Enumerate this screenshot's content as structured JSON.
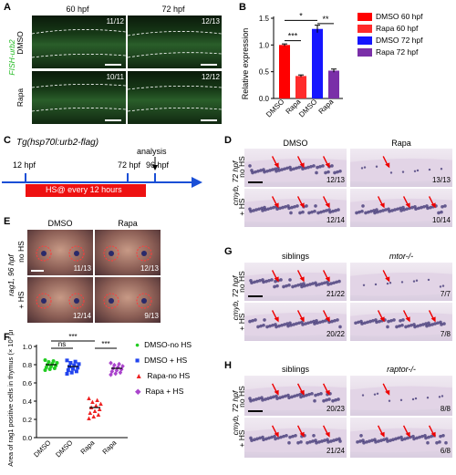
{
  "panelA": {
    "letter": "A",
    "col_headers": [
      "60 hpf",
      "72 hpf"
    ],
    "row_labels": [
      "DMSO",
      "Rapa"
    ],
    "y_title": "FISH-urb2",
    "counts": [
      "11/12",
      "12/13",
      "10/11",
      "12/12"
    ]
  },
  "panelB": {
    "letter": "B",
    "ylabel": "Relative expression",
    "legend": [
      "DMSO 60 hpf",
      "Rapa 60 hpf",
      "DMSO 72 hpf",
      "Rapa 72 hpf"
    ],
    "colors": [
      "#ff0000",
      "#ff2b2b",
      "#1515ff",
      "#7a2fa8"
    ],
    "sig": [
      "***",
      "*",
      "**"
    ]
  },
  "chart_data": {
    "type": "bar",
    "categories": [
      "DMSO",
      "Rapa",
      "DMSO",
      "Rapa"
    ],
    "values": [
      1.0,
      0.42,
      1.3,
      0.52
    ],
    "errors": [
      0.02,
      0.02,
      0.07,
      0.03
    ],
    "ylabel": "Relative expression",
    "ylim": [
      0,
      1.5
    ],
    "yticks": [
      "0.0",
      "0.5",
      "1.0",
      "1.5"
    ],
    "legend": [
      "DMSO 60 hpf",
      "Rapa 60 hpf",
      "DMSO 72 hpf",
      "Rapa 72 hpf"
    ]
  },
  "panelC": {
    "letter": "C",
    "transgene": "Tg(hsp70l:urb2-flag)",
    "time_start": "12 hpf",
    "time_mid": "72 hpf",
    "time_end": "96 hpf",
    "analysis": "analysis",
    "hs_label": "HS@ every 12 hours"
  },
  "panelD": {
    "letter": "D",
    "col_headers": [
      "DMSO",
      "Rapa"
    ],
    "row_labels": [
      "no HS",
      "+ HS"
    ],
    "y_title": "cmyb, 72 hpf",
    "counts": [
      "12/13",
      "13/13",
      "12/14",
      "10/14"
    ]
  },
  "panelE": {
    "letter": "E",
    "col_headers": [
      "DMSO",
      "Rapa"
    ],
    "row_labels": [
      "no HS",
      "+ HS"
    ],
    "y_title": "rag1, 96 hpf",
    "counts": [
      "11/13",
      "12/13",
      "12/14",
      "9/13"
    ]
  },
  "panelF": {
    "letter": "F",
    "ylabel": "Area of rag1 positive cells in thymus (× 10³ μm²)",
    "yticks": [
      "0.0",
      "0.2",
      "0.4",
      "0.6",
      "0.8",
      "1.0"
    ],
    "xlabels": [
      "DMSO",
      "DMSO",
      "Rapa",
      "Rapa"
    ],
    "legend": [
      "DMSO-no HS",
      "DMSO + HS",
      "Rapa-no HS",
      "Rapa + HS"
    ],
    "colors": [
      "#22cc22",
      "#2244ee",
      "#ee2222",
      "#aa44cc"
    ],
    "sig": [
      "***",
      "ns",
      "***"
    ],
    "means": [
      0.8,
      0.78,
      0.33,
      0.76
    ]
  },
  "panelG": {
    "letter": "G",
    "col_headers": [
      "siblings",
      "mtor-/-"
    ],
    "row_labels": [
      "no HS",
      "+ HS"
    ],
    "y_title": "cmyb, 72 hpf",
    "counts": [
      "21/22",
      "7/7",
      "20/22",
      "7/8"
    ]
  },
  "panelH": {
    "letter": "H",
    "col_headers": [
      "siblings",
      "raptor-/-"
    ],
    "row_labels": [
      "no HS",
      "+ HS"
    ],
    "y_title": "cmyb, 72 hpf",
    "counts": [
      "20/23",
      "8/8",
      "21/24",
      "6/8"
    ]
  }
}
